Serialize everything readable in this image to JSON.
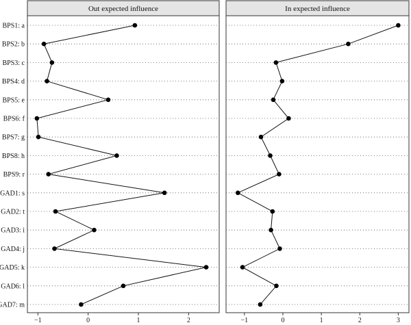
{
  "chart_data": {
    "type": "line",
    "categories": [
      "BPS1: a",
      "BPS2: b",
      "BPS3: c",
      "BPS4: d",
      "BPS5: e",
      "BPS6: f",
      "BPS7: g",
      "BPS8: h",
      "BPS9: r",
      "GAD1: s",
      "GAD2: t",
      "GAD3: i",
      "GAD4: j",
      "GAD5: k",
      "GAD6: l",
      "GAD7: m"
    ],
    "panels": [
      {
        "title": "Out expected influence",
        "xlim": [
          -1.1,
          2.5
        ],
        "xticks": [
          -1,
          0,
          1,
          2
        ],
        "values": [
          0.93,
          -0.88,
          -0.72,
          -0.82,
          0.4,
          -1.02,
          -0.99,
          0.57,
          -0.79,
          1.52,
          -0.65,
          0.12,
          -0.67,
          2.35,
          0.7,
          -0.14
        ]
      },
      {
        "title": "In expected influence",
        "xlim": [
          -1.3,
          3.1
        ],
        "xticks": [
          -1,
          0,
          1,
          2,
          3
        ],
        "values": [
          3.0,
          1.7,
          -0.18,
          -0.02,
          -0.25,
          0.15,
          -0.57,
          -0.33,
          -0.1,
          -1.17,
          -0.27,
          -0.31,
          -0.08,
          -1.05,
          -0.17,
          -0.59
        ]
      }
    ],
    "grid": "horizontal dotted",
    "legend": "none"
  }
}
